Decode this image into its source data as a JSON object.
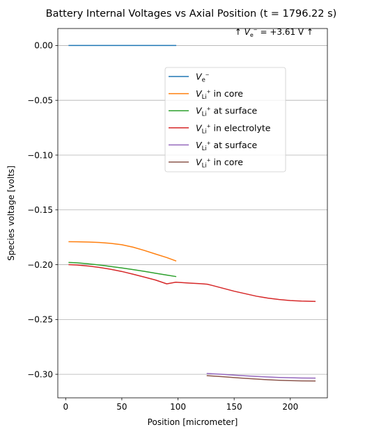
{
  "chart_data": {
    "type": "line",
    "title": "Battery Internal Voltages vs Axial Position (t = 1796.22 s)",
    "xlabel": "Position [micrometer]",
    "ylabel": "Species voltage [volts]",
    "xlim": [
      -7,
      233
    ],
    "ylim": [
      -0.3215,
      0.0155
    ],
    "xticks": [
      0,
      50,
      100,
      150,
      200
    ],
    "xtick_labels": [
      "0",
      "50",
      "100",
      "150",
      "200"
    ],
    "yticks": [
      0.0,
      -0.05,
      -0.1,
      -0.15,
      -0.2,
      -0.25,
      -0.3
    ],
    "ytick_labels": [
      "0.00",
      "−0.05",
      "−0.10",
      "−0.15",
      "−0.20",
      "−0.25",
      "−0.30"
    ],
    "grid": "horizontal",
    "legend_position": "upper-center",
    "annotation": {
      "prefix": "↑ ",
      "symbol": "V",
      "subscript": "e",
      "superscript": "−",
      "value": " = +3.61 V ↑"
    },
    "series": [
      {
        "name": "V_e⁻",
        "legend": {
          "symbol": "V",
          "subscript": "e",
          "superscript": "−",
          "text": ""
        },
        "color": "#1f77b4",
        "x": [
          3,
          98
        ],
        "y": [
          0.0,
          0.0
        ]
      },
      {
        "name": "V_Li⁺ in core",
        "legend": {
          "symbol": "V",
          "subscript": "Li",
          "superscript": "+",
          "text": " in core"
        },
        "color": "#ff7f0e",
        "x": [
          3,
          10,
          20,
          30,
          40,
          50,
          60,
          70,
          80,
          90,
          98
        ],
        "y": [
          -0.179,
          -0.1791,
          -0.1793,
          -0.1797,
          -0.1805,
          -0.1818,
          -0.184,
          -0.187,
          -0.1903,
          -0.1935,
          -0.1965
        ]
      },
      {
        "name": "V_Li⁺ at surface",
        "legend": {
          "symbol": "V",
          "subscript": "Li",
          "superscript": "+",
          "text": " at surface"
        },
        "color": "#2ca02c",
        "x": [
          3,
          10,
          20,
          30,
          40,
          50,
          60,
          70,
          80,
          90,
          98
        ],
        "y": [
          -0.198,
          -0.1983,
          -0.1992,
          -0.2003,
          -0.2016,
          -0.203,
          -0.2045,
          -0.2061,
          -0.2078,
          -0.2095,
          -0.2108
        ]
      },
      {
        "name": "V_Li⁺ in electrolyte",
        "legend": {
          "symbol": "V",
          "subscript": "Li",
          "superscript": "+",
          "text": " in electrolyte"
        },
        "color": "#d62728",
        "x": [
          3,
          10,
          20,
          30,
          40,
          50,
          60,
          70,
          80,
          90,
          98,
          103,
          110,
          120,
          126,
          130,
          140,
          150,
          160,
          170,
          180,
          190,
          200,
          210,
          222
        ],
        "y": [
          -0.2,
          -0.2003,
          -0.2012,
          -0.2025,
          -0.2042,
          -0.2062,
          -0.2087,
          -0.2113,
          -0.214,
          -0.2175,
          -0.216,
          -0.2163,
          -0.2168,
          -0.2173,
          -0.2178,
          -0.2188,
          -0.2215,
          -0.2242,
          -0.2265,
          -0.2288,
          -0.2305,
          -0.2318,
          -0.2327,
          -0.2332,
          -0.2335
        ]
      },
      {
        "name": "V_Li⁺ at surface",
        "legend": {
          "symbol": "V",
          "subscript": "Li",
          "superscript": "+",
          "text": " at surface"
        },
        "color": "#9467bd",
        "x": [
          126,
          140,
          150,
          160,
          170,
          180,
          190,
          200,
          210,
          222
        ],
        "y": [
          -0.2993,
          -0.3001,
          -0.3008,
          -0.3014,
          -0.302,
          -0.3025,
          -0.3029,
          -0.3032,
          -0.3034,
          -0.3035
        ]
      },
      {
        "name": "V_Li⁺ in core",
        "legend": {
          "symbol": "V",
          "subscript": "Li",
          "superscript": "+",
          "text": " in core"
        },
        "color": "#8c564b",
        "x": [
          126,
          140,
          150,
          160,
          170,
          180,
          190,
          200,
          210,
          222
        ],
        "y": [
          -0.3013,
          -0.3022,
          -0.303,
          -0.3037,
          -0.3044,
          -0.305,
          -0.3055,
          -0.3058,
          -0.306,
          -0.3061
        ]
      }
    ]
  }
}
